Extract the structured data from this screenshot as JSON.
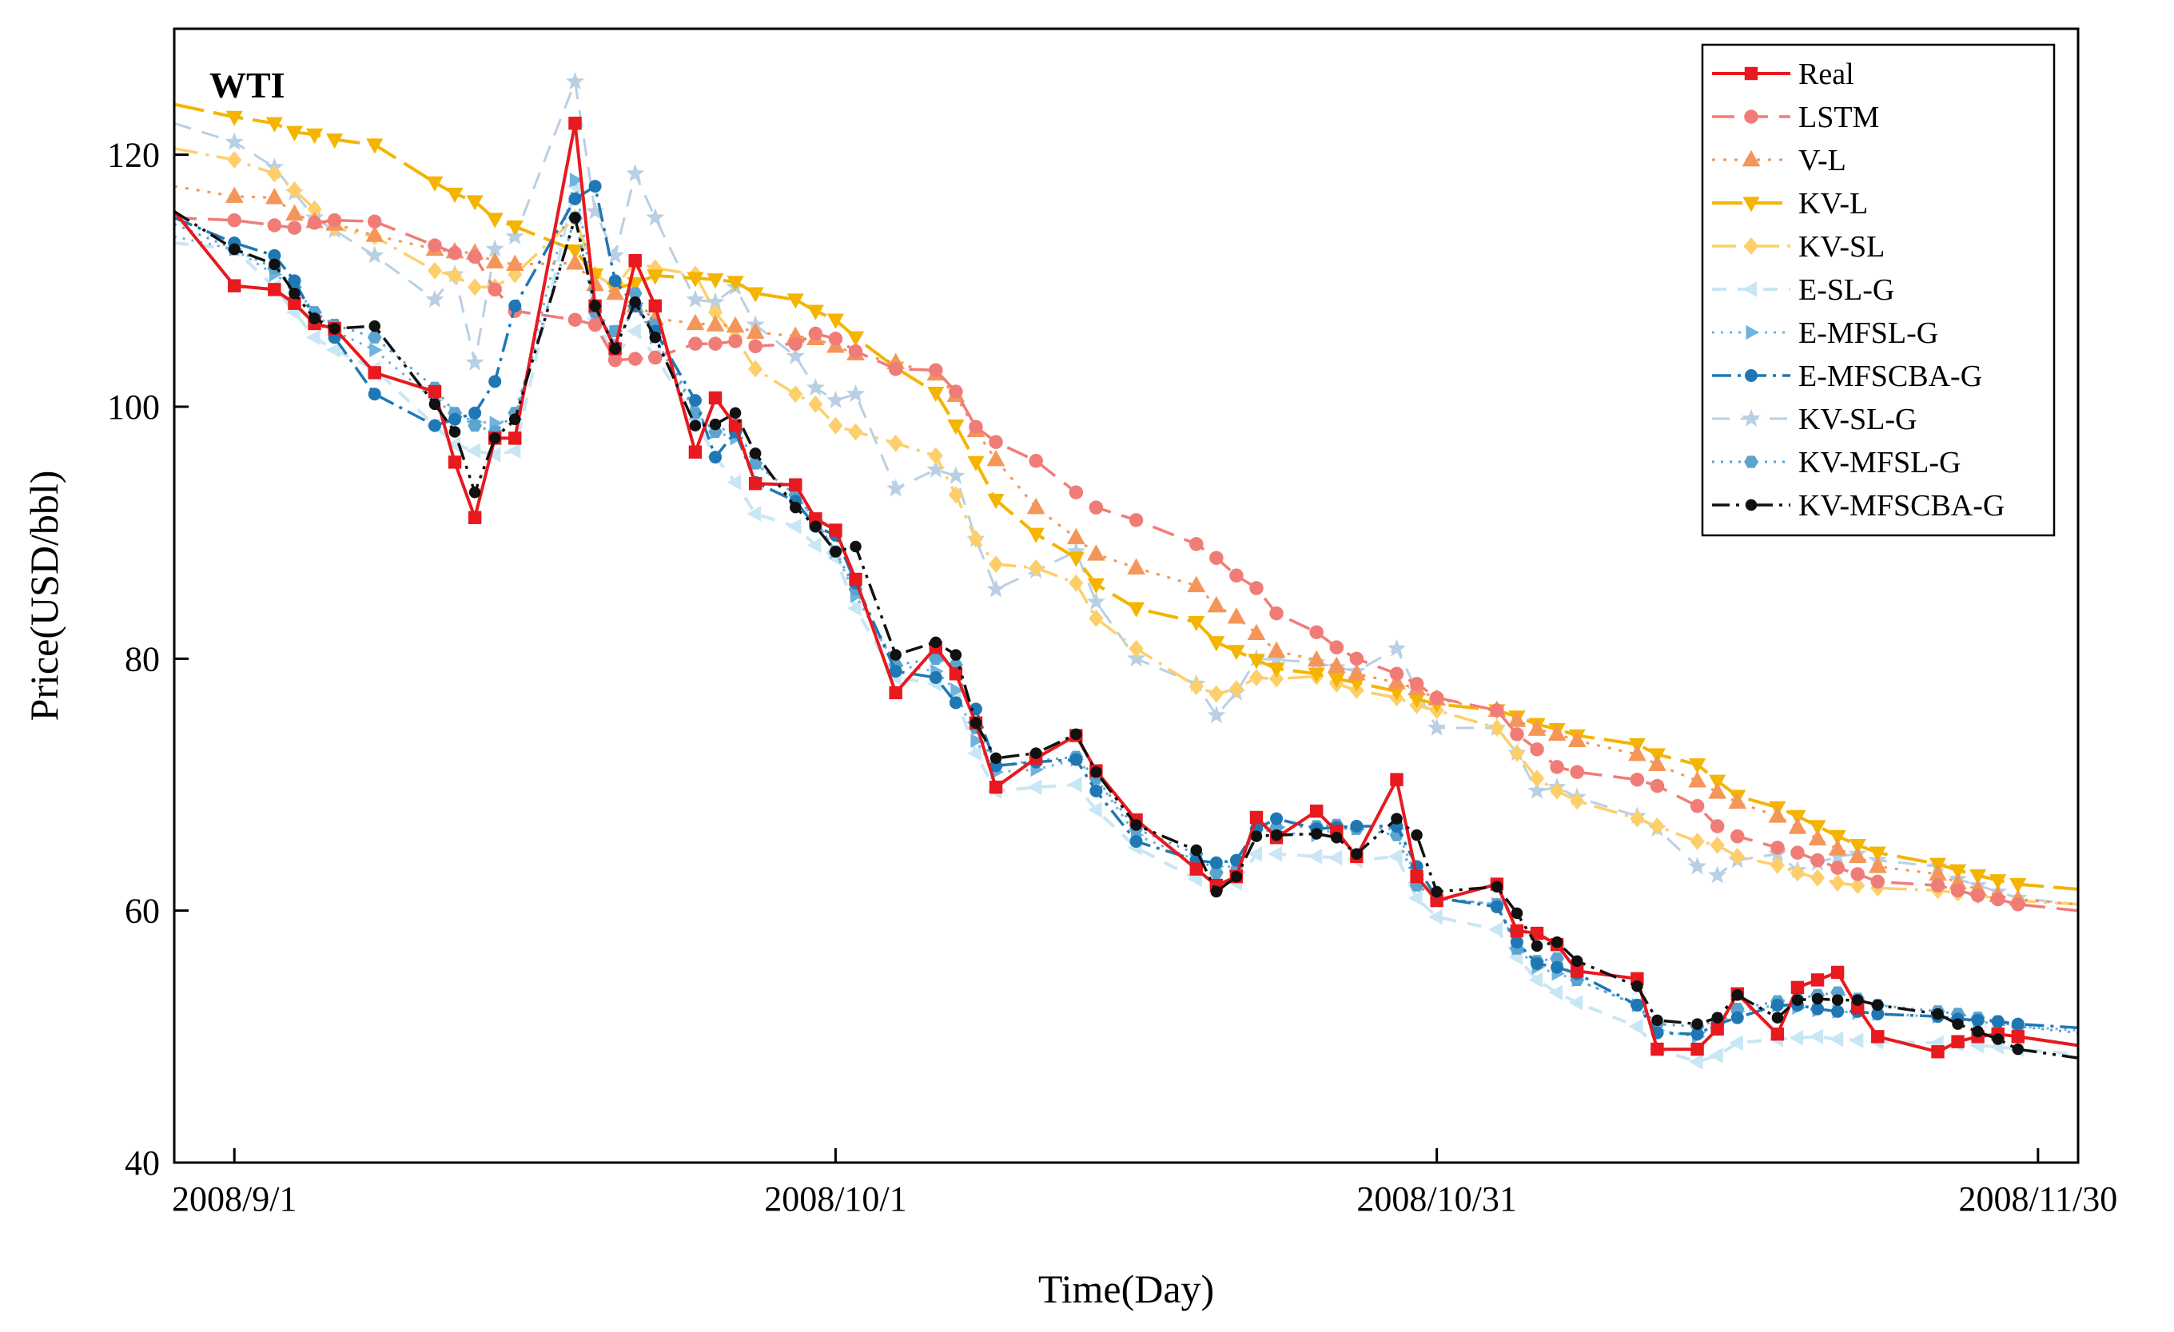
{
  "chart_data": {
    "type": "line",
    "panel_label": "WTI",
    "xlabel": "Time(Day)",
    "ylabel": "Price(USD/bbl)",
    "x_tick_labels": [
      "2008/9/1",
      "2008/10/1",
      "2008/10/31",
      "2008/11/30"
    ],
    "x_tick_positions": [
      0,
      30,
      60,
      90
    ],
    "xlim": [
      -3,
      92
    ],
    "ylim": [
      40,
      130
    ],
    "y_ticks": [
      40,
      60,
      80,
      100,
      120
    ],
    "grid": false,
    "legend_position": "top-right",
    "x": [
      -3,
      0,
      2,
      3,
      4,
      5,
      7,
      10,
      11,
      12,
      13,
      14,
      17,
      18,
      19,
      20,
      21,
      23,
      24,
      25,
      26,
      28,
      29,
      30,
      31,
      33,
      35,
      36,
      37,
      38,
      40,
      42,
      43,
      45,
      48,
      49,
      50,
      51,
      52,
      54,
      55,
      56,
      58,
      59,
      60,
      63,
      64,
      65,
      66,
      67,
      70,
      71,
      73,
      74,
      75,
      77,
      78,
      79,
      80,
      81,
      82,
      85,
      86,
      87,
      88,
      89,
      92
    ],
    "series": [
      {
        "name": "Real",
        "color": "#e8191f",
        "values": [
          115.5,
          109.6,
          109.3,
          108.2,
          106.6,
          106.2,
          102.7,
          101.2,
          95.6,
          91.2,
          97.5,
          97.5,
          122.5,
          108,
          104.6,
          111.6,
          108,
          96.4,
          100.7,
          98.5,
          93.9,
          93.8,
          91.1,
          90.2,
          86.3,
          77.3,
          80.9,
          78.8,
          74.9,
          69.8,
          72.1,
          73.9,
          71.1,
          67.2,
          63.3,
          62.0,
          62.7,
          67.4,
          65.8,
          67.9,
          66.3,
          64.3,
          70.4,
          62.7,
          60.8,
          62.1,
          58.4,
          58.2,
          57.3,
          55.2,
          54.6,
          49.0,
          49.0,
          50.6,
          53.4,
          50.2,
          53.9,
          54.5,
          55.1,
          52.3,
          50.0,
          48.8,
          49.6,
          50.0,
          50.2,
          50.0,
          49.3
        ]
      },
      {
        "name": "LSTM",
        "color": "#f07c78",
        "values": [
          115,
          114.8,
          114.4,
          114.2,
          114.6,
          114.8,
          114.7,
          112.8,
          112.2,
          111.9,
          109.3,
          107.6,
          106.9,
          106.5,
          103.7,
          103.8,
          103.9,
          105,
          105,
          105.2,
          104.8,
          105,
          105.8,
          105.4,
          104.4,
          103,
          102.9,
          101.2,
          98.4,
          97.2,
          95.7,
          93.2,
          92.0,
          91.0,
          89.1,
          88.0,
          86.6,
          85.6,
          83.6,
          82.1,
          80.9,
          80.0,
          78.8,
          78.0,
          76.9,
          75.9,
          74.0,
          72.8,
          71.4,
          71.0,
          70.4,
          69.9,
          68.3,
          66.7,
          65.9,
          65.0,
          64.6,
          64.0,
          63.4,
          62.9,
          62.3,
          62.0,
          61.6,
          61.2,
          60.9,
          60.5,
          60.0
        ]
      },
      {
        "name": "V-L",
        "color": "#f4965a",
        "values": [
          117.5,
          116.7,
          116.6,
          115.3,
          114.7,
          114.5,
          113.6,
          112.5,
          112.3,
          112.2,
          111.5,
          111.3,
          111.4,
          109.7,
          109.0,
          108.0,
          107.0,
          106.6,
          106.5,
          106.4,
          105.9,
          105.6,
          105.4,
          104.8,
          104.2,
          103.5,
          102.6,
          100.9,
          98.1,
          95.8,
          92.0,
          89.6,
          88.3,
          87.2,
          85.8,
          84.2,
          83.3,
          82.0,
          80.6,
          79.9,
          79.4,
          78.8,
          78.1,
          77.6,
          76.8,
          75.9,
          75.1,
          74.4,
          74.0,
          73.5,
          72.4,
          71.6,
          70.3,
          69.4,
          68.6,
          67.5,
          66.6,
          65.7,
          64.9,
          64.3,
          63.5,
          62.9,
          62.2,
          61.7,
          61.2,
          60.9,
          60.5
        ]
      },
      {
        "name": "KV-L",
        "color": "#f4b400",
        "values": [
          124,
          123,
          122.5,
          121.8,
          121.6,
          121.2,
          120.8,
          117.8,
          116.9,
          116.3,
          114.9,
          114.3,
          112.4,
          110.5,
          109.4,
          109.8,
          110.4,
          110.2,
          110.1,
          109.9,
          109.0,
          108.5,
          107.6,
          106.9,
          105.5,
          103.1,
          101.1,
          98.5,
          95.6,
          92.6,
          89.9,
          88.0,
          85.9,
          84.0,
          82.9,
          81.3,
          80.6,
          79.9,
          79.2,
          78.8,
          78.4,
          78.1,
          77.4,
          76.8,
          76.4,
          75.9,
          75.4,
          74.8,
          74.4,
          73.9,
          73.2,
          72.4,
          71.6,
          70.3,
          69.1,
          68.2,
          67.5,
          66.7,
          65.9,
          65.2,
          64.6,
          63.7,
          63.2,
          62.8,
          62.4,
          62.1,
          61.7
        ]
      },
      {
        "name": "KV-SL",
        "color": "#fdcf6a",
        "values": [
          120.5,
          119.6,
          118.5,
          117.2,
          115.7,
          114.2,
          113.5,
          110.8,
          110.4,
          109.5,
          109.5,
          110.5,
          115,
          110.5,
          109.5,
          111.5,
          111,
          110.5,
          107.5,
          105.5,
          103,
          101,
          100.2,
          98.5,
          98.0,
          97.1,
          96.1,
          93.0,
          89.5,
          87.5,
          87.2,
          86.0,
          83.2,
          80.8,
          77.8,
          77.2,
          77.6,
          78.5,
          78.4,
          78.6,
          78.0,
          77.5,
          76.9,
          76.3,
          75.9,
          74.5,
          72.5,
          70.5,
          69.5,
          68.7,
          67.3,
          66.7,
          65.5,
          65.2,
          64.3,
          63.6,
          63.0,
          62.6,
          62.2,
          62.0,
          61.8,
          61.6,
          61.4,
          61.2,
          61.0,
          60.8,
          60.5
        ]
      },
      {
        "name": "E-SL-G",
        "color": "#c9e6f4",
        "values": [
          113,
          112.5,
          109.5,
          107.5,
          105.5,
          104.5,
          103,
          98.5,
          97,
          96.5,
          96.2,
          96.5,
          117.5,
          107,
          104,
          106,
          104,
          99,
          96,
          94,
          91.5,
          90.5,
          89,
          88,
          84,
          78.5,
          78,
          77,
          72.5,
          69.5,
          69.8,
          70,
          68,
          65,
          62.5,
          62,
          62.2,
          64.5,
          64.5,
          64.3,
          64.2,
          64.0,
          64.3,
          61,
          59.5,
          58.5,
          56.3,
          54.5,
          53.5,
          52.7,
          50.8,
          49.0,
          48.0,
          48.5,
          49.5,
          49.8,
          49.9,
          50.0,
          49.8,
          49.7,
          49.6,
          49.5,
          49.4,
          49.3,
          49.2,
          49.0,
          48.6
        ]
      },
      {
        "name": "E-MFSL-G",
        "color": "#6fb3de",
        "values": [
          113.5,
          112.5,
          110.5,
          109.5,
          107.5,
          106.0,
          104.5,
          100.5,
          99.5,
          98.8,
          98.7,
          99.0,
          118,
          108,
          105,
          108,
          105.5,
          99.5,
          98,
          97.5,
          95.5,
          93,
          91,
          88.5,
          85,
          79.5,
          79.0,
          77.5,
          73.5,
          71.0,
          71.2,
          72.0,
          70.5,
          66.0,
          64.0,
          63.5,
          63.5,
          66.5,
          66.2,
          66.0,
          66.5,
          66.5,
          66.5,
          62.5,
          61.0,
          60.5,
          57.0,
          55.5,
          55.0,
          54.5,
          52.5,
          50.5,
          50.0,
          51.0,
          52.0,
          52.5,
          52.3,
          52.1,
          52.0,
          51.9,
          51.8,
          51.6,
          51.4,
          51.2,
          51.0,
          50.8,
          50.5
        ]
      },
      {
        "name": "E-MFSCBA-G",
        "color": "#1f78b4",
        "values": [
          115,
          113,
          112,
          110,
          107,
          105.5,
          101,
          98.5,
          99,
          99.5,
          102,
          108,
          116.5,
          117.5,
          110,
          108,
          106,
          100.5,
          96,
          98,
          94,
          92.5,
          90.5,
          89.8,
          86,
          79,
          78.5,
          76.5,
          76,
          71.5,
          71.8,
          72,
          69.5,
          65.5,
          64,
          63.8,
          64.0,
          66.5,
          67.3,
          66.5,
          66.6,
          66.7,
          66.7,
          63.5,
          61.0,
          60.3,
          57.5,
          55.8,
          55.5,
          55.0,
          52.5,
          50.3,
          50.2,
          51.0,
          51.5,
          52.5,
          52.5,
          52.2,
          52.0,
          52.0,
          51.8,
          51.6,
          51.4,
          51.3,
          51.2,
          51.0,
          50.7
        ]
      },
      {
        "name": "KV-SL-G",
        "color": "#b9cfe4",
        "values": [
          122.5,
          121,
          119,
          117,
          115,
          114,
          112,
          108.5,
          110.5,
          103.5,
          112.5,
          113.5,
          125.8,
          115.5,
          112,
          118.5,
          115,
          108.5,
          108.3,
          109.5,
          106.5,
          104,
          101.5,
          100.5,
          101,
          93.5,
          95,
          94.5,
          89.5,
          85.5,
          87.0,
          88.5,
          84.5,
          80.0,
          78.0,
          75.5,
          77.3,
          80.0,
          79.9,
          79.7,
          79.3,
          79.0,
          80.8,
          77.5,
          74.5,
          74.5,
          72.5,
          69.5,
          69.8,
          69.0,
          67.5,
          66.5,
          63.5,
          62.8,
          64.0,
          64.5,
          63.2,
          63.8,
          64.3,
          64.5,
          64.0,
          63.5,
          62.5,
          62.0,
          61.5,
          61.0,
          60.5
        ]
      },
      {
        "name": "KV-MFSL-G",
        "color": "#5ba4cf",
        "values": [
          114.5,
          112.5,
          111,
          109.5,
          107.5,
          106.5,
          105.5,
          101.5,
          99.5,
          98.5,
          98.0,
          99.5,
          115,
          107.5,
          106,
          109,
          106.5,
          99.5,
          98,
          98.5,
          95.5,
          93,
          91,
          88.5,
          85.5,
          79.5,
          80,
          79.5,
          74.5,
          71.5,
          71.9,
          72.2,
          70.5,
          66.5,
          64.5,
          63.0,
          63.2,
          66.5,
          66.6,
          66.7,
          66.8,
          66.5,
          66.0,
          62.0,
          61.0,
          60.5,
          57.0,
          56.0,
          56.2,
          54.5,
          52.5,
          51.0,
          50.8,
          51.3,
          52.2,
          52.8,
          53.0,
          53.3,
          53.5,
          53.0,
          52.5,
          52.0,
          51.8,
          51.5,
          51.2,
          50.8,
          50.3
        ]
      },
      {
        "name": "KV-MFSCBA-G",
        "color": "#111111",
        "values": [
          115.5,
          112.5,
          111.3,
          109,
          107,
          106.2,
          106.4,
          100.2,
          98,
          93.2,
          97.5,
          99,
          115,
          108,
          104.6,
          108.3,
          105.5,
          98.5,
          98.6,
          99.5,
          96.3,
          92,
          90.5,
          88.5,
          88.9,
          80.3,
          81.3,
          80.3,
          74.9,
          72.1,
          72.5,
          74.0,
          71.0,
          66.8,
          64.8,
          61.5,
          62.7,
          65.9,
          66.0,
          66.1,
          65.8,
          64.5,
          67.3,
          66.0,
          61.5,
          61.9,
          59.8,
          57.2,
          57.5,
          56.0,
          54.0,
          51.3,
          51.0,
          51.5,
          53.3,
          51.5,
          52.9,
          53.0,
          52.9,
          52.9,
          52.5,
          51.8,
          51.0,
          50.4,
          49.8,
          49.0,
          48.3
        ]
      }
    ]
  }
}
